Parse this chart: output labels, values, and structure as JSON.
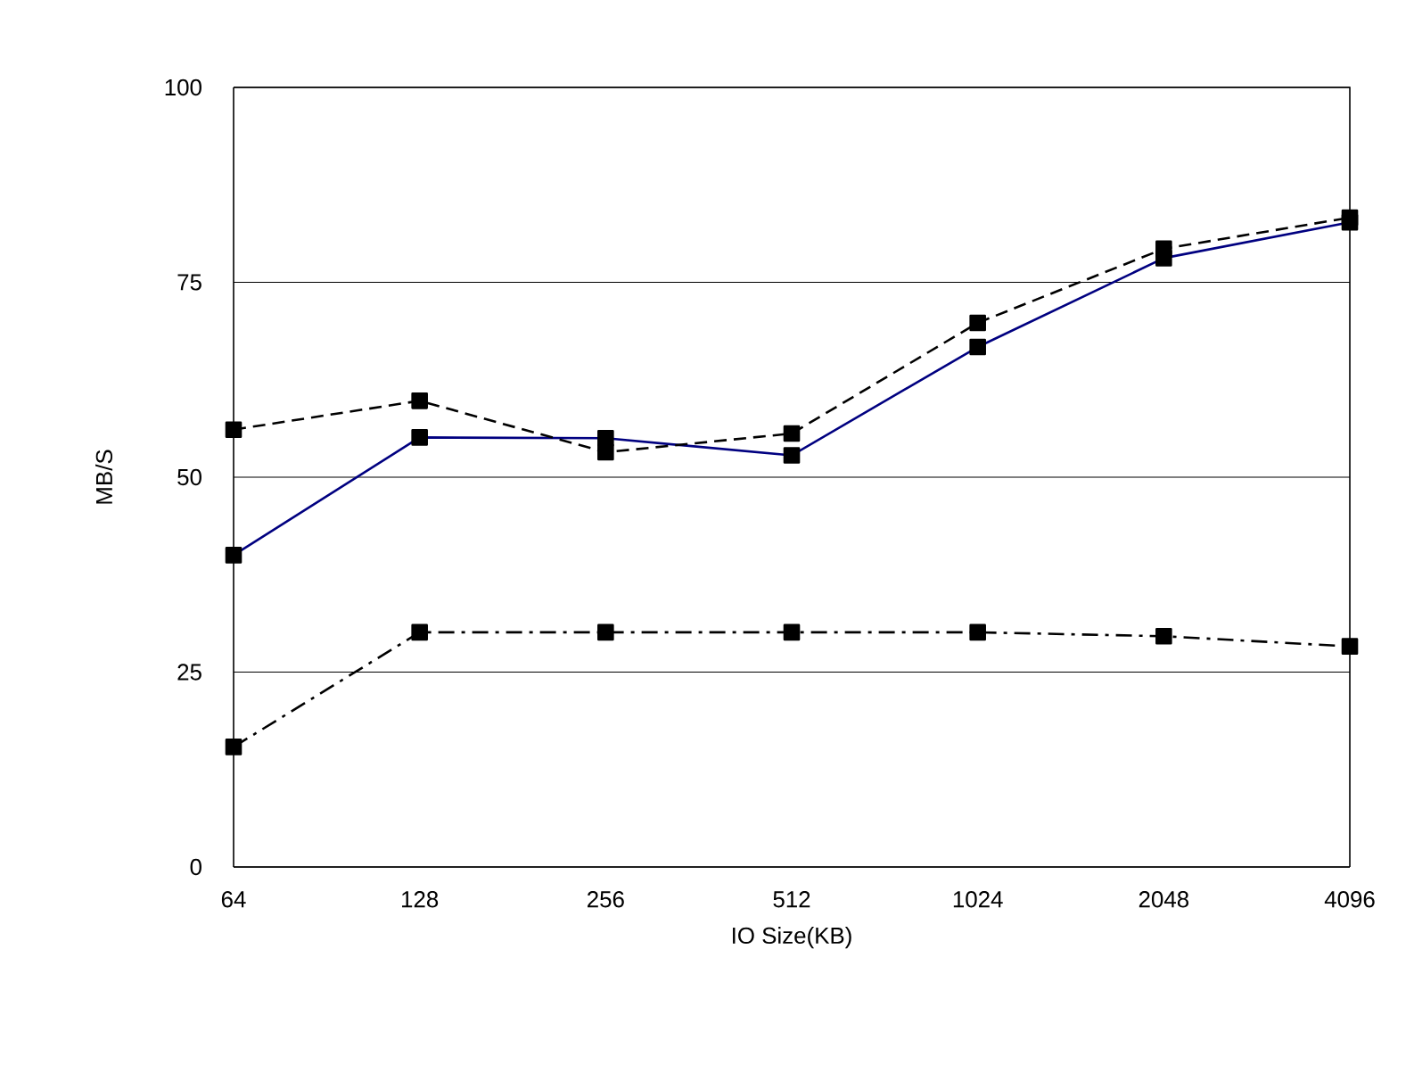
{
  "chart_data": {
    "type": "line",
    "xlabel": "IO Size(KB)",
    "ylabel": "MB/S",
    "categories": [
      "64",
      "128",
      "256",
      "512",
      "1024",
      "2048",
      "4096"
    ],
    "series": [
      {
        "color": "#000080",
        "line_style": "solid",
        "values": [
          40,
          55.1,
          55,
          52.8,
          66.7,
          78.1,
          82.7
        ]
      },
      {
        "color": "#000000",
        "line_style": "dashed",
        "values": [
          56.1,
          59.8,
          53.2,
          55.6,
          69.8,
          79.3,
          83.3
        ]
      },
      {
        "color": "#000000",
        "line_style": "dashdot",
        "values": [
          15.4,
          30.1,
          30.1,
          30.1,
          30.1,
          29.6,
          28.3
        ]
      }
    ],
    "ylim": [
      0,
      100
    ],
    "yticks": [
      0,
      25,
      50,
      75,
      100
    ],
    "grid": "y",
    "marker": "square"
  }
}
